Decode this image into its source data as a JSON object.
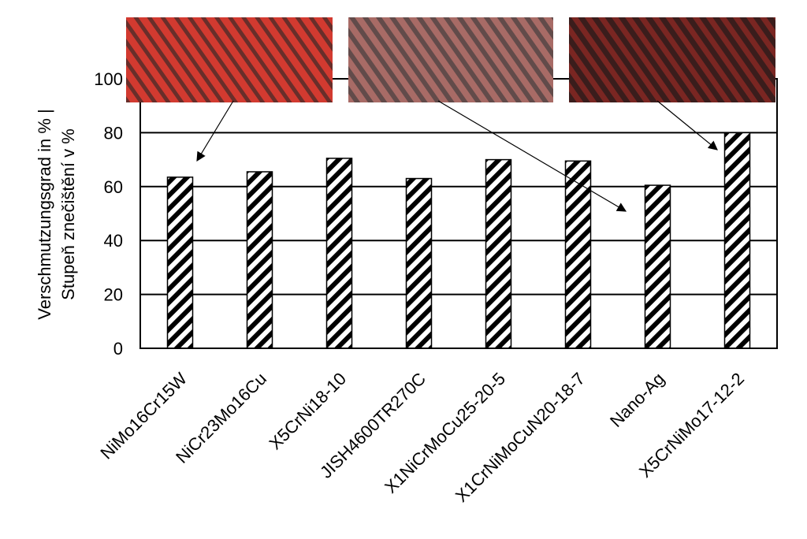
{
  "chart_data": {
    "type": "bar",
    "title": "",
    "xlabel": "",
    "ylabel_line1": "Verschmutzungsgrad in % |",
    "ylabel_line2": "Stupeň znečištění v %",
    "ylim": [
      0,
      100
    ],
    "yticks": [
      "0",
      "20",
      "40",
      "60",
      "80",
      "100"
    ],
    "grid": "horizontal",
    "categories": [
      "NiMo16Cr15W",
      "NiCr23Mo16Cu",
      "X5CrNi18-10",
      "JISH4600TR270C",
      "X1NiCrMoCu25-20-5",
      "X1CrNiMoCuN20-18-7",
      "Nano-Ag",
      "X5CrNiMo17-12-2"
    ],
    "values": [
      63.5,
      65.5,
      70.5,
      63,
      70,
      69.5,
      60.5,
      80
    ],
    "bar_pattern": "diagonal-hatch",
    "photo_insets": [
      {
        "description": "tube with red-stained deposits",
        "points_to_category": "NiMo16Cr15W",
        "color": "#c0302a"
      },
      {
        "description": "tube with red-stained deposits",
        "points_to_category": "Nano-Ag",
        "color": "#9a5a55"
      },
      {
        "description": "tube with red-stained deposits",
        "points_to_category": "X5CrNiMo17-12-2",
        "color": "#5a2020"
      }
    ]
  }
}
